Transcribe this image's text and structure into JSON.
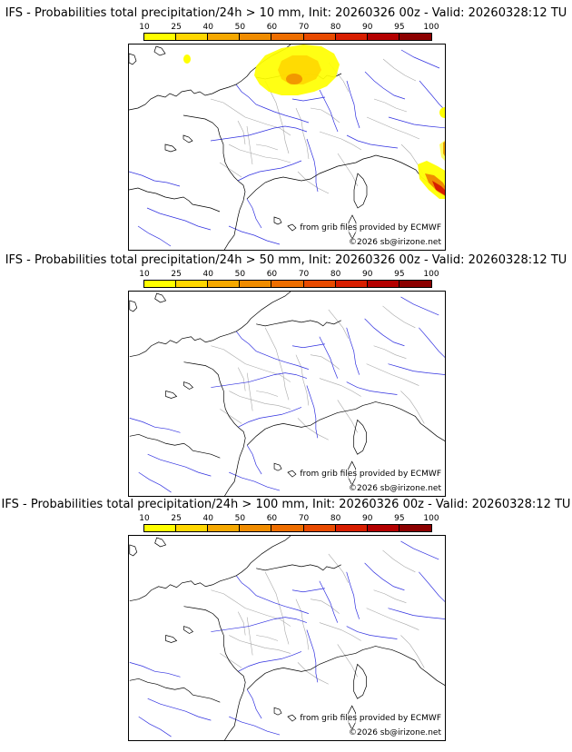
{
  "panels": [
    {
      "title": "IFS - Probabilities total precipitation/24h > 10 mm, Init: 20260326 00z - Valid: 20260328:12 TU",
      "credit_source": "from grib files provided by ECMWF",
      "credit_copyright": "©2026 sb@irizone.net",
      "has_precip": true
    },
    {
      "title": "IFS - Probabilities total precipitation/24h > 50 mm, Init: 20260326 00z - Valid: 20260328:12 TU",
      "credit_source": "from grib files provided by ECMWF",
      "credit_copyright": "©2026 sb@irizone.net",
      "has_precip": false
    },
    {
      "title": "IFS - Probabilities total precipitation/24h > 100 mm, Init: 20260326 00z - Valid: 20260328:12 TU",
      "credit_source": "from grib files provided by ECMWF",
      "credit_copyright": "©2026 sb@irizone.net",
      "has_precip": false
    }
  ],
  "colorbar": {
    "labels": [
      "10",
      "25",
      "40",
      "50",
      "60",
      "70",
      "80",
      "90",
      "95",
      "100"
    ],
    "colors": [
      "#ffff00",
      "#ffd700",
      "#f5a800",
      "#f08c00",
      "#ee6e00",
      "#e84a00",
      "#d81e00",
      "#b40000",
      "#8c0000"
    ]
  },
  "map_colors": {
    "coastline": "#000000",
    "rivers": "#3030e0",
    "regions": "#a8a8a8",
    "precip_low": "#ffff00",
    "precip_mid": "#ffd700",
    "precip_high": "#f08c00",
    "precip_max": "#d81e00"
  }
}
